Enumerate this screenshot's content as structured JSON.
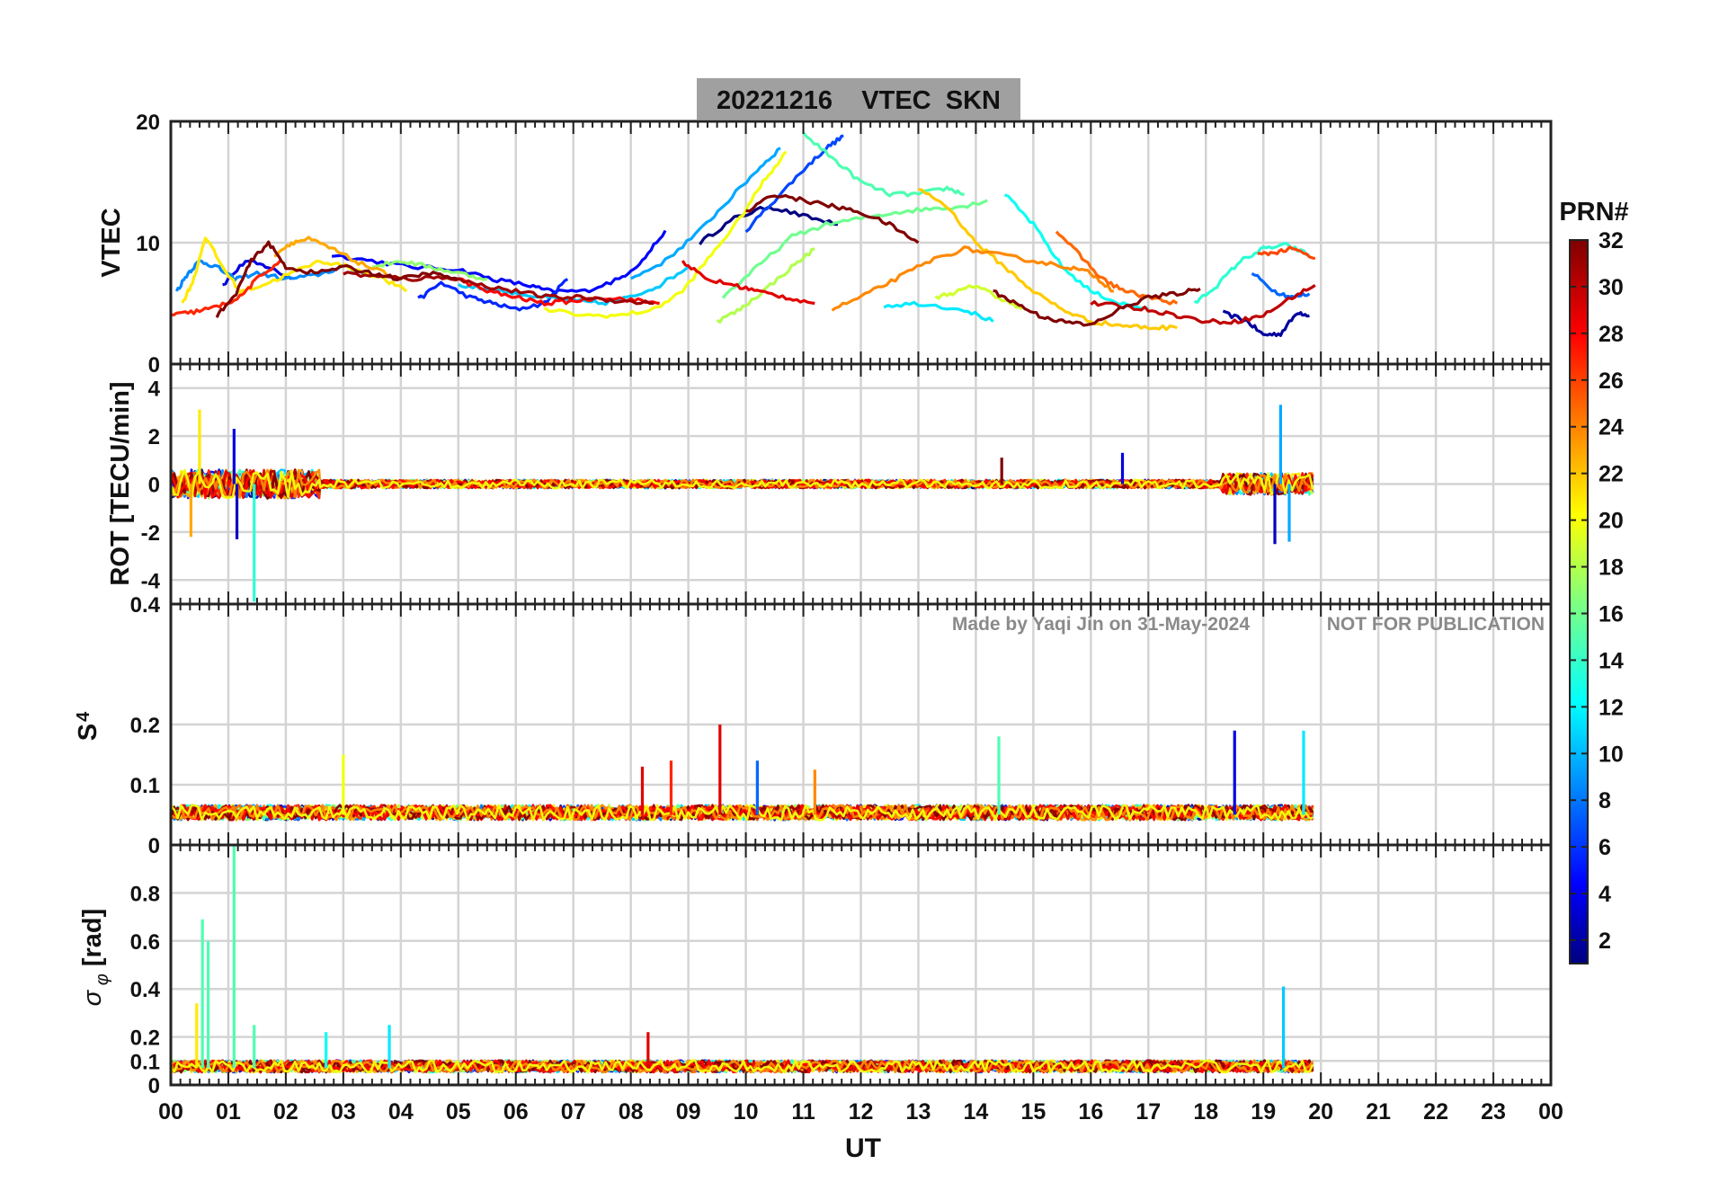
{
  "figure": {
    "title": "20221216    VTEC  SKN",
    "watermark_left": "Made by Yaqi Jin on 31-May-2024",
    "watermark_right": "NOT FOR PUBLICATION",
    "title_box_color": "#a0a0a0"
  },
  "x_axis": {
    "label": "UT",
    "ticks": [
      "00",
      "01",
      "02",
      "03",
      "04",
      "05",
      "06",
      "07",
      "08",
      "09",
      "10",
      "11",
      "12",
      "13",
      "14",
      "15",
      "16",
      "17",
      "18",
      "19",
      "20",
      "21",
      "22",
      "23",
      "00"
    ],
    "range_hours": [
      0,
      24
    ]
  },
  "colorbar": {
    "title": "PRN#",
    "range": [
      1,
      32
    ],
    "ticks": [
      "2",
      "4",
      "6",
      "8",
      "10",
      "12",
      "14",
      "16",
      "18",
      "20",
      "22",
      "24",
      "26",
      "28",
      "30",
      "32"
    ],
    "colormap": "jet"
  },
  "chart_data": [
    {
      "type": "line",
      "panel": "vtec",
      "ylabel": "VTEC",
      "ylim": [
        0,
        20
      ],
      "yticks": [
        "0",
        "10",
        "20"
      ],
      "grid": true,
      "series": [
        {
          "prn": 1,
          "x": [
            9.2,
            9.8,
            10.4,
            11.0,
            11.6
          ],
          "y": [
            10.0,
            12.0,
            13.0,
            12.2,
            11.5
          ]
        },
        {
          "prn": 2,
          "x": [
            18.3,
            18.7,
            19.0,
            19.3,
            19.6,
            19.8
          ],
          "y": [
            4.2,
            3.6,
            2.4,
            2.5,
            4.3,
            4.0
          ]
        },
        {
          "prn": 4,
          "x": [
            0.9,
            1.3,
            1.7,
            2.1
          ],
          "y": [
            6.5,
            8.5,
            8.0,
            7.0
          ]
        },
        {
          "prn": 5,
          "x": [
            2.8,
            3.5,
            4.2,
            5.0,
            5.6,
            6.2,
            6.6,
            7.2,
            7.8,
            8.2,
            8.6
          ],
          "y": [
            9.0,
            8.5,
            8.0,
            7.8,
            7.0,
            6.5,
            6.0,
            6.0,
            7.0,
            8.5,
            11.0
          ]
        },
        {
          "prn": 6,
          "x": [
            4.3,
            4.7,
            5.2,
            5.6,
            6.0,
            6.5,
            6.9
          ],
          "y": [
            5.3,
            6.7,
            5.5,
            5.0,
            4.5,
            5.0,
            7.0
          ]
        },
        {
          "prn": 7,
          "x": [
            10.0,
            10.5,
            11.0,
            11.4,
            11.7
          ],
          "y": [
            11.0,
            13.5,
            16.0,
            17.8,
            18.8
          ]
        },
        {
          "prn": 8,
          "x": [
            18.8,
            19.2,
            19.5,
            19.8
          ],
          "y": [
            7.5,
            6.0,
            5.5,
            5.8
          ]
        },
        {
          "prn": 9,
          "x": [
            0.1,
            0.3,
            0.5,
            0.8,
            1.1,
            1.5,
            2.0,
            2.5,
            3.0,
            3.6
          ],
          "y": [
            6.0,
            7.5,
            8.5,
            8.0,
            7.0,
            7.5,
            7.0,
            7.3,
            8.0,
            7.2
          ]
        },
        {
          "prn": 10,
          "x": [
            8.0,
            8.6,
            9.2,
            9.7,
            10.2,
            10.6
          ],
          "y": [
            7.0,
            8.5,
            11.0,
            13.5,
            16.0,
            17.8
          ]
        },
        {
          "prn": 11,
          "x": [
            5.0,
            5.5,
            6.0,
            6.5,
            7.0,
            7.5,
            8.0,
            8.5,
            9.0
          ],
          "y": [
            6.5,
            6.2,
            5.8,
            5.5,
            5.2,
            5.0,
            5.5,
            6.5,
            8.0
          ]
        },
        {
          "prn": 12,
          "x": [
            12.4,
            13.0,
            13.8,
            14.3
          ],
          "y": [
            4.8,
            5.0,
            4.5,
            3.5
          ]
        },
        {
          "prn": 13,
          "x": [
            14.5,
            15.0,
            15.5,
            16.0,
            16.5,
            17.0
          ],
          "y": [
            14.0,
            11.5,
            8.0,
            6.0,
            5.0,
            4.5
          ]
        },
        {
          "prn": 14,
          "x": [
            17.8,
            18.2,
            18.6,
            19.0,
            19.4,
            19.8
          ],
          "y": [
            5.0,
            6.5,
            8.5,
            9.5,
            9.8,
            9.0
          ]
        },
        {
          "prn": 15,
          "x": [
            11.0,
            11.5,
            12.0,
            12.5,
            13.0,
            13.5,
            13.8
          ],
          "y": [
            19.0,
            17.0,
            15.0,
            14.0,
            14.0,
            14.5,
            14.0
          ]
        },
        {
          "prn": 16,
          "x": [
            9.6,
            10.2,
            10.8,
            11.4,
            12.0,
            12.6,
            13.2,
            13.8,
            14.2
          ],
          "y": [
            5.5,
            8.0,
            10.5,
            11.5,
            12.0,
            12.5,
            12.8,
            13.0,
            13.5
          ]
        },
        {
          "prn": 17,
          "x": [
            3.5,
            4.0,
            4.5,
            5.0,
            5.5
          ],
          "y": [
            8.0,
            8.5,
            8.0,
            7.5,
            7.0
          ]
        },
        {
          "prn": 18,
          "x": [
            9.5,
            9.9,
            10.3,
            10.8,
            11.2
          ],
          "y": [
            3.5,
            4.5,
            6.0,
            8.0,
            9.5
          ]
        },
        {
          "prn": 19,
          "x": [
            13.3,
            13.7,
            14.0,
            14.4,
            14.8
          ],
          "y": [
            5.5,
            6.0,
            6.5,
            5.5,
            4.5
          ]
        },
        {
          "prn": 20,
          "x": [
            6.5,
            7.2,
            7.8,
            8.4,
            8.9,
            9.4,
            9.9,
            10.3,
            10.7
          ],
          "y": [
            4.5,
            4.0,
            4.0,
            4.5,
            6.0,
            9.0,
            12.0,
            15.0,
            17.5
          ]
        },
        {
          "prn": 21,
          "x": [
            0.2,
            0.4,
            0.6,
            0.9,
            1.2,
            1.6,
            2.1,
            2.6,
            3.1,
            3.7,
            4.1
          ],
          "y": [
            5.0,
            7.0,
            10.5,
            8.0,
            6.0,
            6.5,
            7.5,
            8.5,
            8.0,
            7.0,
            6.0
          ]
        },
        {
          "prn": 22,
          "x": [
            13.0,
            13.5,
            14.0,
            14.5,
            15.0,
            15.5,
            16.0,
            16.5,
            17.0,
            17.5
          ],
          "y": [
            14.5,
            13.0,
            10.0,
            8.0,
            6.0,
            4.5,
            3.5,
            3.2,
            3.0,
            3.0
          ]
        },
        {
          "prn": 23,
          "x": [
            1.8,
            2.1,
            2.4,
            2.8,
            3.2,
            3.7,
            4.1
          ],
          "y": [
            9.0,
            10.0,
            10.3,
            9.5,
            8.5,
            7.5,
            7.0
          ]
        },
        {
          "prn": 24,
          "x": [
            11.5,
            12.0,
            12.6,
            13.2,
            13.8,
            14.4,
            15.0,
            15.6,
            16.0,
            16.4
          ],
          "y": [
            4.5,
            5.5,
            7.0,
            8.5,
            9.5,
            9.0,
            8.5,
            8.0,
            7.5,
            6.0
          ]
        },
        {
          "prn": 25,
          "x": [
            15.4,
            15.8,
            16.2,
            16.6,
            17.0,
            17.5
          ],
          "y": [
            11.0,
            9.0,
            7.0,
            6.0,
            5.5,
            5.0
          ]
        },
        {
          "prn": 26,
          "x": [
            18.9,
            19.2,
            19.5,
            19.9
          ],
          "y": [
            9.0,
            9.2,
            9.5,
            8.7
          ]
        },
        {
          "prn": 27,
          "x": [
            0.0,
            0.4,
            0.8,
            1.2,
            1.5,
            1.9
          ],
          "y": [
            4.0,
            4.3,
            4.7,
            5.5,
            7.0,
            8.5
          ]
        },
        {
          "prn": 28,
          "x": [
            5.0,
            5.5,
            6.0,
            6.5,
            7.0,
            7.5,
            8.0,
            8.5
          ],
          "y": [
            7.0,
            6.0,
            5.5,
            5.0,
            5.2,
            5.5,
            5.3,
            5.0
          ]
        },
        {
          "prn": 29,
          "x": [
            8.9,
            9.3,
            9.8,
            10.2,
            10.7,
            11.2
          ],
          "y": [
            8.5,
            7.0,
            6.5,
            6.0,
            5.5,
            5.0
          ]
        },
        {
          "prn": 30,
          "x": [
            16.0,
            16.5,
            17.0,
            17.5,
            18.0,
            18.5,
            19.0,
            19.5,
            19.9
          ],
          "y": [
            5.0,
            4.8,
            4.5,
            4.0,
            3.5,
            3.5,
            4.0,
            5.5,
            6.5
          ]
        },
        {
          "prn": 31,
          "x": [
            3.0,
            3.6,
            4.2,
            4.8,
            5.4,
            6.0,
            6.6,
            7.2,
            7.8,
            8.4
          ],
          "y": [
            7.5,
            7.2,
            7.0,
            7.2,
            6.5,
            6.0,
            5.5,
            5.5,
            5.2,
            5.0
          ]
        },
        {
          "prn": 32,
          "x": [
            0.8,
            1.1,
            1.4,
            1.7,
            2.0,
            2.5,
            3.0,
            3.5,
            4.0,
            4.5,
            5.0
          ],
          "y": [
            4.0,
            5.5,
            8.5,
            10.0,
            8.0,
            7.5,
            8.0,
            7.5,
            7.0,
            7.5,
            7.0
          ]
        },
        {
          "prn": 32,
          "x": [
            10.0,
            10.5,
            11.0,
            11.5,
            12.0,
            12.5,
            13.0
          ],
          "y": [
            12.5,
            14.0,
            13.5,
            13.0,
            12.5,
            11.5,
            10.0
          ]
        },
        {
          "prn": 32,
          "x": [
            14.3,
            14.7,
            15.1,
            15.5,
            16.0,
            16.5,
            17.0,
            17.5,
            17.9
          ],
          "y": [
            6.0,
            5.0,
            4.0,
            3.5,
            3.2,
            4.5,
            5.5,
            5.8,
            6.2
          ]
        }
      ]
    },
    {
      "type": "line",
      "panel": "rot",
      "ylabel": "ROT [TECU/min]",
      "ylim": [
        -5,
        5
      ],
      "yticks": [
        "-4",
        "-2",
        "0",
        "2",
        "4"
      ],
      "grid": true,
      "spikes": [
        {
          "prn": 21,
          "x": 0.5,
          "y": 3.1
        },
        {
          "prn": 14,
          "x": 1.45,
          "y": -4.9
        },
        {
          "prn": 4,
          "x": 1.1,
          "y": 2.3
        },
        {
          "prn": 3,
          "x": 1.15,
          "y": -2.3
        },
        {
          "prn": 23,
          "x": 0.35,
          "y": -2.2
        },
        {
          "prn": 10,
          "x": 19.3,
          "y": 3.3
        },
        {
          "prn": 3,
          "x": 19.2,
          "y": -2.5
        },
        {
          "prn": 10,
          "x": 19.45,
          "y": -2.4
        },
        {
          "prn": 4,
          "x": 16.55,
          "y": 1.3
        },
        {
          "prn": 32,
          "x": 14.45,
          "y": 1.1
        }
      ],
      "bands": [
        {
          "x_start": 0.0,
          "x_end": 2.6,
          "amplitude": 1.2
        },
        {
          "x_start": 2.6,
          "x_end": 18.3,
          "amplitude": 0.35
        },
        {
          "x_start": 18.3,
          "x_end": 19.9,
          "amplitude": 0.9
        }
      ]
    },
    {
      "type": "line",
      "panel": "s4",
      "ylabel": "S4",
      "ylim": [
        0,
        0.4
      ],
      "yticks": [
        "0",
        "0.1",
        "0.2",
        "0.4"
      ],
      "grid": true,
      "spikes": [
        {
          "prn": 29,
          "x": 9.55,
          "y": 0.2
        },
        {
          "prn": 4,
          "x": 18.5,
          "y": 0.19
        },
        {
          "prn": 12,
          "x": 19.7,
          "y": 0.19
        },
        {
          "prn": 15,
          "x": 14.4,
          "y": 0.18
        },
        {
          "prn": 20,
          "x": 3.0,
          "y": 0.15
        },
        {
          "prn": 27,
          "x": 8.7,
          "y": 0.14
        },
        {
          "prn": 8,
          "x": 10.2,
          "y": 0.14
        },
        {
          "prn": 24,
          "x": 11.2,
          "y": 0.125
        },
        {
          "prn": 29,
          "x": 8.2,
          "y": 0.13
        }
      ],
      "bands": [
        {
          "x_start": 0.0,
          "x_end": 19.9,
          "baseline": 0.05,
          "amplitude": 0.025
        }
      ]
    },
    {
      "type": "line",
      "panel": "sigma_phi",
      "ylabel": "σ φ [rad]",
      "ylim": [
        0,
        1.0
      ],
      "yticks": [
        "0",
        "0.1",
        "0.2",
        "0.4",
        "0.6",
        "0.8"
      ],
      "grid": true,
      "spikes": [
        {
          "prn": 15,
          "x": 1.1,
          "y": 1.0
        },
        {
          "prn": 15,
          "x": 0.55,
          "y": 0.69
        },
        {
          "prn": 15,
          "x": 0.65,
          "y": 0.6
        },
        {
          "prn": 21,
          "x": 0.45,
          "y": 0.34
        },
        {
          "prn": 11,
          "x": 19.35,
          "y": 0.41
        },
        {
          "prn": 12,
          "x": 3.8,
          "y": 0.25
        },
        {
          "prn": 13,
          "x": 2.7,
          "y": 0.22
        },
        {
          "prn": 29,
          "x": 8.3,
          "y": 0.22
        },
        {
          "prn": 15,
          "x": 1.45,
          "y": 0.25
        }
      ],
      "bands": [
        {
          "x_start": 0.0,
          "x_end": 19.9,
          "baseline": 0.07,
          "amplitude": 0.05
        }
      ]
    }
  ]
}
